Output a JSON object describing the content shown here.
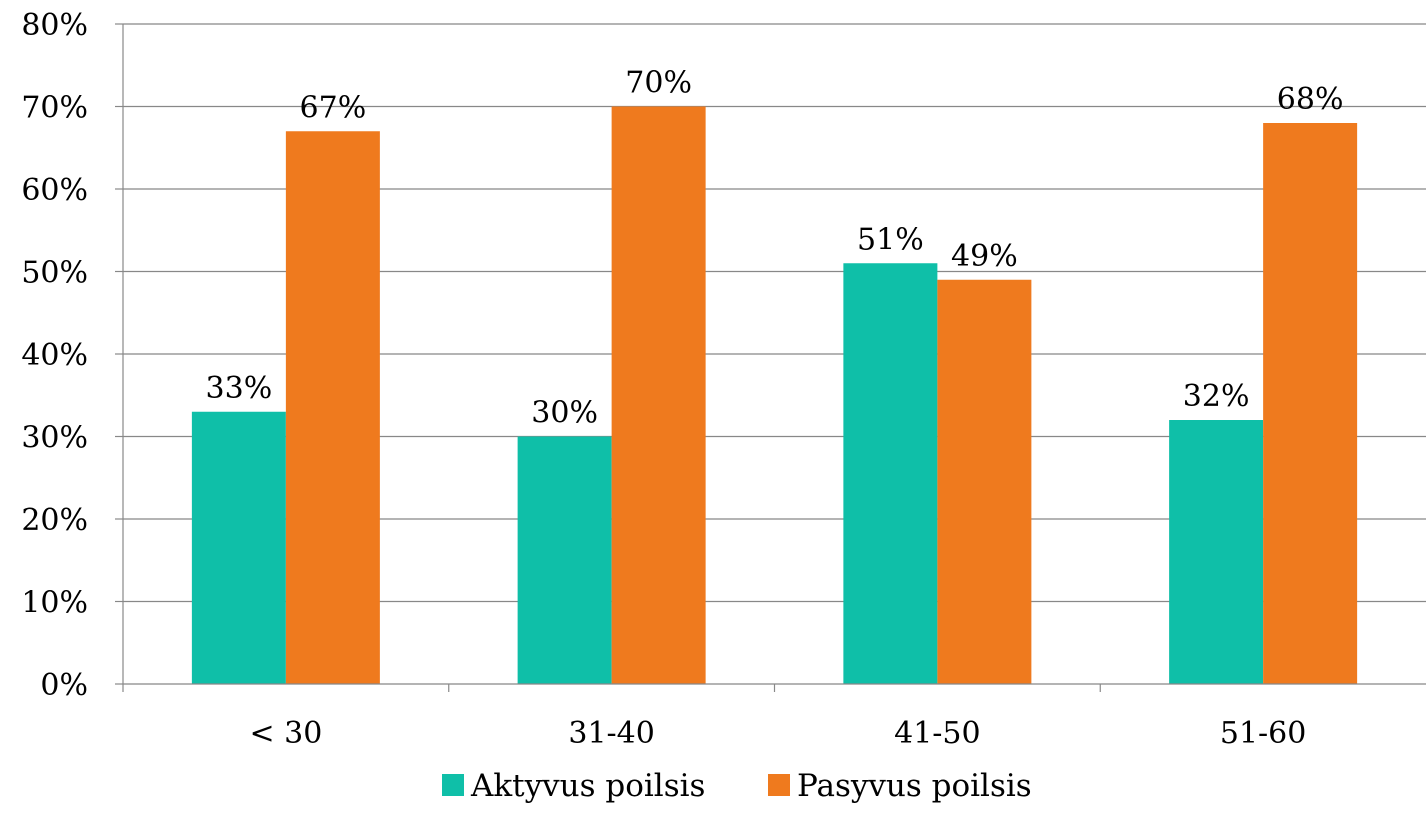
{
  "chart_data": {
    "type": "bar",
    "categories": [
      "< 30",
      "31-40",
      "41-50",
      "51-60"
    ],
    "series": [
      {
        "name": "Aktyvus poilsis",
        "values": [
          33,
          30,
          51,
          32
        ],
        "labels": [
          "33%",
          "30%",
          "51%",
          "32%"
        ],
        "color": "#0fbfa8"
      },
      {
        "name": "Pasyvus poilsis",
        "values": [
          67,
          70,
          49,
          68
        ],
        "labels": [
          "67%",
          "70%",
          "49%",
          "68%"
        ],
        "color": "#ef7a1e"
      }
    ],
    "y_ticks": [
      "0%",
      "10%",
      "20%",
      "30%",
      "40%",
      "50%",
      "60%",
      "70%",
      "80%"
    ],
    "ylim": [
      0,
      80
    ],
    "y_unit": "%",
    "grid": true,
    "legend_position": "bottom",
    "title": "",
    "xlabel": "",
    "ylabel": ""
  }
}
